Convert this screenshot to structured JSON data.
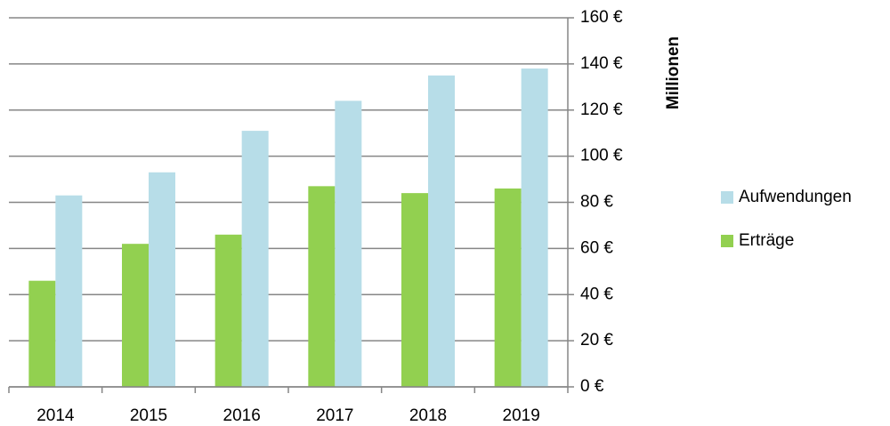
{
  "chart_data": {
    "type": "bar",
    "categories": [
      "2014",
      "2015",
      "2016",
      "2017",
      "2018",
      "2019"
    ],
    "series": [
      {
        "name": "Aufwendungen",
        "color": "#b7dde8",
        "values": [
          83,
          93,
          111,
          124,
          135,
          138
        ]
      },
      {
        "name": "Erträge",
        "color": "#92d050",
        "values": [
          46,
          62,
          66,
          87,
          84,
          86
        ]
      }
    ],
    "ylabel": "Millionen",
    "ylim": [
      0,
      160
    ],
    "yticks": [
      {
        "value": 0,
        "label": "0 €"
      },
      {
        "value": 20,
        "label": "20 €"
      },
      {
        "value": 40,
        "label": "40 €"
      },
      {
        "value": 60,
        "label": "60 €"
      },
      {
        "value": 80,
        "label": "80 €"
      },
      {
        "value": 100,
        "label": "100 €"
      },
      {
        "value": 120,
        "label": "120 €"
      },
      {
        "value": 140,
        "label": "140 €"
      },
      {
        "value": 160,
        "label": "160 €"
      }
    ],
    "grid": true,
    "legend": "right",
    "yaxis_side": "right"
  }
}
